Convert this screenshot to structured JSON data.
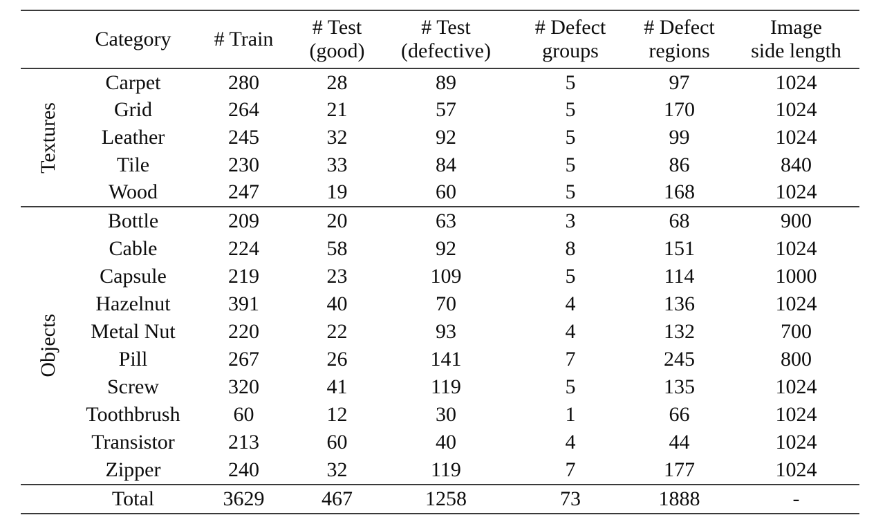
{
  "colors": {
    "background": "#ffffff",
    "rule": "#3a3a3a",
    "text": "#0d0d0d"
  },
  "table": {
    "columns": [
      {
        "line1": "Category",
        "line2": ""
      },
      {
        "line1": "# Train",
        "line2": ""
      },
      {
        "line1": "# Test",
        "line2": "(good)"
      },
      {
        "line1": "# Test",
        "line2": "(defective)"
      },
      {
        "line1": "# Defect",
        "line2": "groups"
      },
      {
        "line1": "# Defect",
        "line2": "regions"
      },
      {
        "line1": "Image",
        "line2": "side length"
      }
    ],
    "groups": [
      {
        "label": "Textures",
        "rows": [
          {
            "category": "Carpet",
            "values": [
              "280",
              "28",
              "89",
              "5",
              "97",
              "1024"
            ]
          },
          {
            "category": "Grid",
            "values": [
              "264",
              "21",
              "57",
              "5",
              "170",
              "1024"
            ]
          },
          {
            "category": "Leather",
            "values": [
              "245",
              "32",
              "92",
              "5",
              "99",
              "1024"
            ]
          },
          {
            "category": "Tile",
            "values": [
              "230",
              "33",
              "84",
              "5",
              "86",
              "840"
            ]
          },
          {
            "category": "Wood",
            "values": [
              "247",
              "19",
              "60",
              "5",
              "168",
              "1024"
            ]
          }
        ]
      },
      {
        "label": "Objects",
        "rows": [
          {
            "category": "Bottle",
            "values": [
              "209",
              "20",
              "63",
              "3",
              "68",
              "900"
            ]
          },
          {
            "category": "Cable",
            "values": [
              "224",
              "58",
              "92",
              "8",
              "151",
              "1024"
            ]
          },
          {
            "category": "Capsule",
            "values": [
              "219",
              "23",
              "109",
              "5",
              "114",
              "1000"
            ]
          },
          {
            "category": "Hazelnut",
            "values": [
              "391",
              "40",
              "70",
              "4",
              "136",
              "1024"
            ]
          },
          {
            "category": "Metal Nut",
            "values": [
              "220",
              "22",
              "93",
              "4",
              "132",
              "700"
            ]
          },
          {
            "category": "Pill",
            "values": [
              "267",
              "26",
              "141",
              "7",
              "245",
              "800"
            ]
          },
          {
            "category": "Screw",
            "values": [
              "320",
              "41",
              "119",
              "5",
              "135",
              "1024"
            ]
          },
          {
            "category": "Toothbrush",
            "values": [
              "60",
              "12",
              "30",
              "1",
              "66",
              "1024"
            ]
          },
          {
            "category": "Transistor",
            "values": [
              "213",
              "60",
              "40",
              "4",
              "44",
              "1024"
            ]
          },
          {
            "category": "Zipper",
            "values": [
              "240",
              "32",
              "119",
              "7",
              "177",
              "1024"
            ]
          }
        ]
      }
    ],
    "total_row": {
      "label": "Total",
      "values": [
        "3629",
        "467",
        "1258",
        "73",
        "1888",
        "-"
      ]
    }
  }
}
